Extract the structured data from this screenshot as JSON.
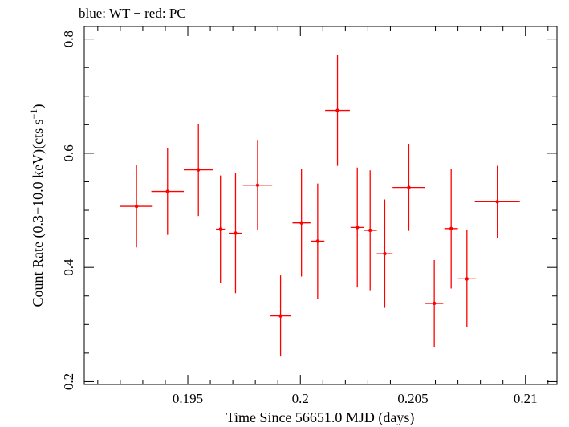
{
  "chart_data": {
    "type": "scatter",
    "title": "blue: WT − red: PC",
    "xlabel": "Time Since 56651.0 MJD (days)",
    "ylabel_main": "Count Rate (0.3−10.0 keV)(cts s",
    "ylabel_sup": "−1",
    "ylabel_end": ")",
    "xlim": [
      0.1904,
      0.2114
    ],
    "ylim": [
      0.195,
      0.822
    ],
    "x_ticks": [
      {
        "value": 0.195,
        "label": "0.195"
      },
      {
        "value": 0.2,
        "label": "0.2"
      },
      {
        "value": 0.205,
        "label": "0.205"
      },
      {
        "value": 0.21,
        "label": "0.21"
      }
    ],
    "y_ticks": [
      {
        "value": 0.2,
        "label": "0.2"
      },
      {
        "value": 0.4,
        "label": "0.4"
      },
      {
        "value": 0.6,
        "label": "0.6"
      },
      {
        "value": 0.8,
        "label": "0.8"
      }
    ],
    "series": [
      {
        "color": "#ff0000",
        "points": [
          {
            "x": 0.19272,
            "xerr": 0.00072,
            "y": 0.507,
            "yerr": 0.072
          },
          {
            "x": 0.1941,
            "xerr": 0.00072,
            "y": 0.533,
            "yerr": 0.076
          },
          {
            "x": 0.19547,
            "xerr": 0.00065,
            "y": 0.571,
            "yerr": 0.081
          },
          {
            "x": 0.19645,
            "xerr": 0.0002,
            "y": 0.467,
            "yerr": 0.094
          },
          {
            "x": 0.19712,
            "xerr": 0.0003,
            "y": 0.46,
            "yerr": 0.105
          },
          {
            "x": 0.1981,
            "xerr": 0.00065,
            "y": 0.544,
            "yerr": 0.078
          },
          {
            "x": 0.19912,
            "xerr": 0.00048,
            "y": 0.315,
            "yerr": 0.071
          },
          {
            "x": 0.20005,
            "xerr": 0.0004,
            "y": 0.478,
            "yerr": 0.094
          },
          {
            "x": 0.20077,
            "xerr": 0.0003,
            "y": 0.446,
            "yerr": 0.101
          },
          {
            "x": 0.20165,
            "xerr": 0.00055,
            "y": 0.675,
            "yerr": 0.097
          },
          {
            "x": 0.20253,
            "xerr": 0.0003,
            "y": 0.47,
            "yerr": 0.105
          },
          {
            "x": 0.2031,
            "xerr": 0.0003,
            "y": 0.465,
            "yerr": 0.105
          },
          {
            "x": 0.20375,
            "xerr": 0.00035,
            "y": 0.424,
            "yerr": 0.095
          },
          {
            "x": 0.20482,
            "xerr": 0.00072,
            "y": 0.54,
            "yerr": 0.076
          },
          {
            "x": 0.20595,
            "xerr": 0.0004,
            "y": 0.337,
            "yerr": 0.076
          },
          {
            "x": 0.2067,
            "xerr": 0.0003,
            "y": 0.468,
            "yerr": 0.105
          },
          {
            "x": 0.2074,
            "xerr": 0.0004,
            "y": 0.38,
            "yerr": 0.085
          },
          {
            "x": 0.20875,
            "xerr": 0.001,
            "y": 0.515,
            "yerr": 0.063
          }
        ]
      }
    ]
  }
}
